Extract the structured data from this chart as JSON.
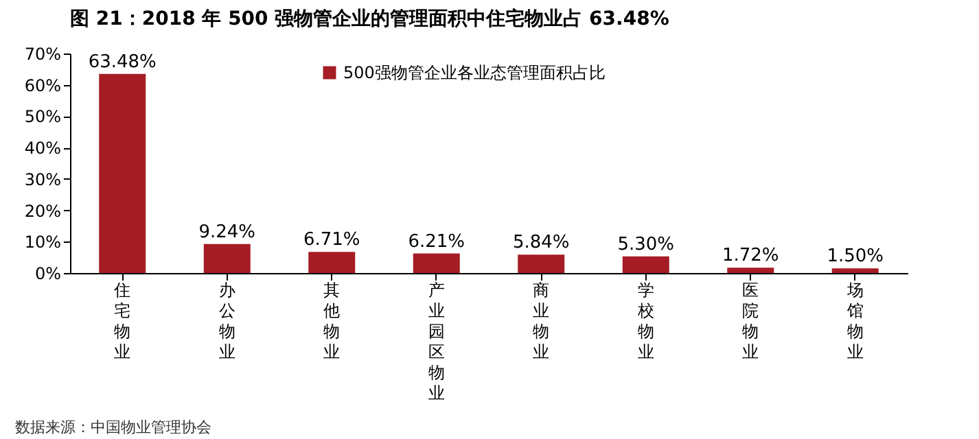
{
  "chart_data": {
    "type": "bar",
    "title": "图 21：2018 年 500 强物管企业的管理面积中住宅物业占 63.48%",
    "categories": [
      "住宅物业",
      "办公物业",
      "其他物业",
      "产业园区物业",
      "商业物业",
      "学校物业",
      "医院物业",
      "场馆物业"
    ],
    "series": [
      {
        "name": "500强物管企业各业态管理面积占比",
        "color": "#a61c24",
        "values": [
          63.48,
          9.24,
          6.71,
          6.21,
          5.84,
          5.3,
          1.72,
          1.5
        ],
        "value_labels": [
          "63.48%",
          "9.24%",
          "6.71%",
          "6.21%",
          "5.84%",
          "5.30%",
          "1.72%",
          "1.50%"
        ]
      }
    ],
    "ylim": [
      0,
      70
    ],
    "yticks": [
      {
        "value": 0,
        "label": "0%"
      },
      {
        "value": 10,
        "label": "10%"
      },
      {
        "value": 20,
        "label": "20%"
      },
      {
        "value": 30,
        "label": "30%"
      },
      {
        "value": 40,
        "label": "40%"
      },
      {
        "value": 50,
        "label": "50%"
      },
      {
        "value": 60,
        "label": "60%"
      },
      {
        "value": 70,
        "label": "70%"
      }
    ],
    "grid": false,
    "legend": "top",
    "annotations": [
      "数据来源：中国物业管理协会"
    ]
  }
}
